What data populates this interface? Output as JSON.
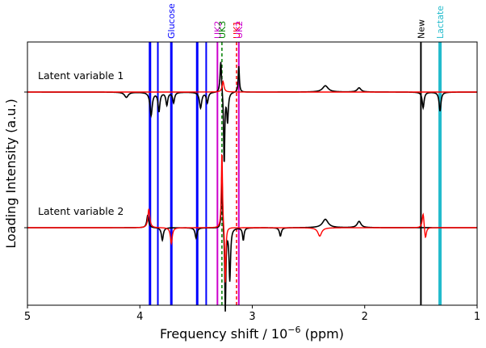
{
  "chart_data": {
    "type": "line",
    "title": "",
    "xlabel_prefix": "Frequency shift / 10",
    "xlabel_exponent": "−6",
    "xlabel_suffix": " (ppm)",
    "ylabel": "Loading Intensity (a.u.)",
    "xlim": [
      5,
      1
    ],
    "x_axis_reversed": true,
    "x_ticks": [
      5,
      4,
      3,
      2,
      1
    ],
    "y_ticks_unlabeled": [
      "Latent variable 1 baseline",
      "Latent variable 2 baseline"
    ],
    "grid": false,
    "panels": [
      {
        "label": "Latent variable 1",
        "baseline_offset": 1
      },
      {
        "label": "Latent variable 2",
        "baseline_offset": 0
      }
    ],
    "series": [
      {
        "color": "#000000"
      },
      {
        "color": "#ff0000"
      }
    ],
    "series_features": [
      {
        "panel": 0,
        "series": 0,
        "ppm": 4.12,
        "amp": -0.05,
        "width": 0.02
      },
      {
        "panel": 0,
        "series": 0,
        "ppm": 3.9,
        "amp": -0.22,
        "width": 0.012
      },
      {
        "panel": 0,
        "series": 0,
        "ppm": 3.83,
        "amp": -0.18,
        "width": 0.01
      },
      {
        "panel": 0,
        "series": 0,
        "ppm": 3.76,
        "amp": -0.12,
        "width": 0.01
      },
      {
        "panel": 0,
        "series": 0,
        "ppm": 3.7,
        "amp": -0.1,
        "width": 0.01
      },
      {
        "panel": 0,
        "series": 0,
        "ppm": 3.46,
        "amp": -0.15,
        "width": 0.012
      },
      {
        "panel": 0,
        "series": 0,
        "ppm": 3.4,
        "amp": -0.1,
        "width": 0.01
      },
      {
        "panel": 0,
        "series": 0,
        "ppm": 3.28,
        "amp": 0.32,
        "width": 0.008
      },
      {
        "panel": 0,
        "series": 0,
        "ppm": 3.25,
        "amp": -0.7,
        "width": 0.006
      },
      {
        "panel": 0,
        "series": 0,
        "ppm": 3.22,
        "amp": -0.28,
        "width": 0.008
      },
      {
        "panel": 0,
        "series": 0,
        "ppm": 3.12,
        "amp": 0.25,
        "width": 0.006
      },
      {
        "panel": 0,
        "series": 0,
        "ppm": 2.35,
        "amp": 0.06,
        "width": 0.03
      },
      {
        "panel": 0,
        "series": 0,
        "ppm": 2.05,
        "amp": 0.04,
        "width": 0.02
      },
      {
        "panel": 0,
        "series": 0,
        "ppm": 1.48,
        "amp": -0.15,
        "width": 0.01
      },
      {
        "panel": 0,
        "series": 0,
        "ppm": 1.33,
        "amp": -0.18,
        "width": 0.01
      },
      {
        "panel": 0,
        "series": 1,
        "ppm": 3.26,
        "amp": 0.1,
        "width": 0.01
      },
      {
        "panel": 1,
        "series": 0,
        "ppm": 3.93,
        "amp": 0.12,
        "width": 0.01
      },
      {
        "panel": 1,
        "series": 0,
        "ppm": 3.8,
        "amp": -0.12,
        "width": 0.01
      },
      {
        "panel": 1,
        "series": 0,
        "ppm": 3.5,
        "amp": -0.1,
        "width": 0.01
      },
      {
        "panel": 1,
        "series": 0,
        "ppm": 3.27,
        "amp": 0.55,
        "width": 0.006
      },
      {
        "panel": 1,
        "series": 0,
        "ppm": 3.24,
        "amp": -0.8,
        "width": 0.006
      },
      {
        "panel": 1,
        "series": 0,
        "ppm": 3.2,
        "amp": -0.5,
        "width": 0.008
      },
      {
        "panel": 1,
        "series": 0,
        "ppm": 3.08,
        "amp": -0.12,
        "width": 0.008
      },
      {
        "panel": 1,
        "series": 0,
        "ppm": 2.75,
        "amp": -0.08,
        "width": 0.01
      },
      {
        "panel": 1,
        "series": 0,
        "ppm": 2.35,
        "amp": 0.08,
        "width": 0.03
      },
      {
        "panel": 1,
        "series": 0,
        "ppm": 2.05,
        "amp": 0.06,
        "width": 0.02
      },
      {
        "panel": 1,
        "series": 1,
        "ppm": 3.92,
        "amp": 0.18,
        "width": 0.01
      },
      {
        "panel": 1,
        "series": 1,
        "ppm": 3.72,
        "amp": -0.15,
        "width": 0.01
      },
      {
        "panel": 1,
        "series": 1,
        "ppm": 3.27,
        "amp": 0.75,
        "width": 0.006
      },
      {
        "panel": 1,
        "series": 1,
        "ppm": 3.24,
        "amp": -0.55,
        "width": 0.006
      },
      {
        "panel": 1,
        "series": 1,
        "ppm": 2.4,
        "amp": -0.08,
        "width": 0.02
      },
      {
        "panel": 1,
        "series": 1,
        "ppm": 1.48,
        "amp": 0.15,
        "width": 0.01
      },
      {
        "panel": 1,
        "series": 1,
        "ppm": 1.46,
        "amp": -0.12,
        "width": 0.01
      }
    ],
    "markers": [
      {
        "ppm": 3.91,
        "color": "#0000ff",
        "style": "solid",
        "width": 3,
        "label": ""
      },
      {
        "ppm": 3.84,
        "color": "#0000ff",
        "style": "solid",
        "width": 2,
        "label": ""
      },
      {
        "ppm": 3.72,
        "color": "#0000ff",
        "style": "solid",
        "width": 3,
        "label": "Glucose"
      },
      {
        "ppm": 3.49,
        "color": "#0000ff",
        "style": "solid",
        "width": 3,
        "label": ""
      },
      {
        "ppm": 3.41,
        "color": "#0000ff",
        "style": "solid",
        "width": 2,
        "label": ""
      },
      {
        "ppm": 3.31,
        "color": "#cc00cc",
        "style": "solid",
        "width": 2,
        "label": "UK2"
      },
      {
        "ppm": 3.27,
        "color": "#008000",
        "style": "dashed",
        "width": 1.5,
        "label": "UK3"
      },
      {
        "ppm": 3.14,
        "color": "#ff0000",
        "style": "dashed",
        "width": 1.5,
        "label": "UK1"
      },
      {
        "ppm": 3.12,
        "color": "#cc00cc",
        "style": "solid",
        "width": 2,
        "label": "UK2"
      },
      {
        "ppm": 1.5,
        "color": "#000000",
        "style": "solid",
        "width": 2,
        "label": "New"
      },
      {
        "ppm": 1.33,
        "color": "#22bbcc",
        "style": "solid",
        "width": 4,
        "label": "Lactate"
      }
    ]
  }
}
